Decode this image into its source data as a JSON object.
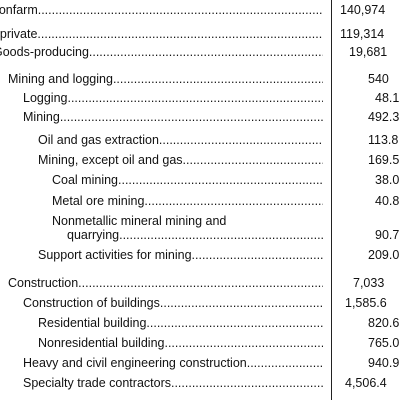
{
  "table": {
    "rows": [
      {
        "label": "Total nonfarm",
        "value": "140,974"
      },
      {
        "label": "Total private",
        "value": "119,314"
      },
      {
        "label": "Goods-producing",
        "value": "19,681"
      },
      {
        "label": "Mining and logging",
        "value": "540"
      },
      {
        "label": "Logging",
        "value": "48.1"
      },
      {
        "label": "Mining",
        "value": "492.3"
      },
      {
        "label": "Oil and gas extraction",
        "value": "113.8"
      },
      {
        "label": "Mining, except oil and gas",
        "value": "169.5"
      },
      {
        "label": "Coal mining",
        "value": "38.0"
      },
      {
        "label": "Metal ore mining",
        "value": "40.8"
      },
      {
        "label": "Nonmetallic mineral mining and",
        "value": ""
      },
      {
        "label": "quarrying",
        "value": "90.7"
      },
      {
        "label": "Support activities for mining",
        "value": "209.0"
      },
      {
        "label": "Construction",
        "value": "7,033"
      },
      {
        "label": "Construction of buildings",
        "value": "1,585.6"
      },
      {
        "label": "Residential building",
        "value": "820.6"
      },
      {
        "label": "Nonresidential building",
        "value": "765.0"
      },
      {
        "label": "Heavy and civil engineering construction",
        "value": "940.9"
      },
      {
        "label": "Specialty trade contractors",
        "value": "4,506.4"
      }
    ]
  }
}
